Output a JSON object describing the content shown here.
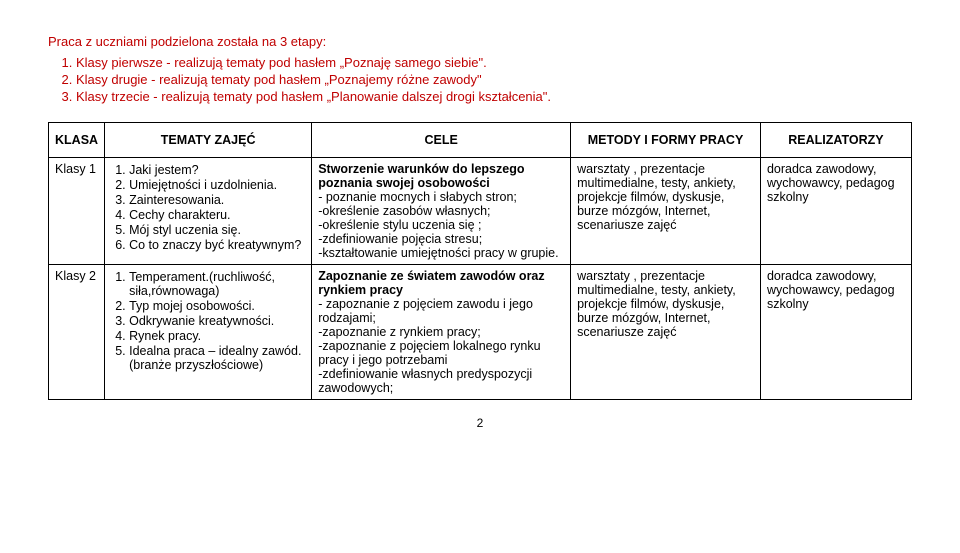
{
  "intro": {
    "lead": "Praca z uczniami podzielona została na 3 etapy:",
    "items": [
      "Klasy pierwsze - realizują tematy pod hasłem „Poznaję samego siebie\".",
      "Klasy drugie  - realizują tematy pod hasłem „Poznajemy różne zawody\"",
      "Klasy trzecie - realizują tematy pod hasłem „Planowanie dalszej drogi kształcenia\"."
    ]
  },
  "table": {
    "headers": {
      "klasa": "KLASA",
      "tematy": "TEMATY ZAJĘĆ",
      "cele": "CELE",
      "metody": "METODY I FORMY PRACY",
      "real": "REALIZATORZY"
    },
    "rows": [
      {
        "klasa": "Klasy 1",
        "tematy": [
          "Jaki jestem?",
          "Umiejętności i uzdolnienia.",
          "Zainteresowania.",
          "Cechy charakteru.",
          "Mój styl uczenia się.",
          "Co to znaczy być kreatywnym?"
        ],
        "cele_title": "Stworzenie warunków do lepszego poznania swojej osobowości",
        "cele_body": "- poznanie mocnych i słabych stron;\n-określenie zasobów własnych;\n-określenie stylu uczenia się ;\n-zdefiniowanie pojęcia stresu;\n-kształtowanie umiejętności pracy w grupie.",
        "metody": "warsztaty , prezentacje multimedialne, testy, ankiety, projekcje filmów, dyskusje, burze mózgów, Internet, scenariusze zajęć",
        "real": "doradca zawodowy, wychowawcy, pedagog szkolny"
      },
      {
        "klasa": "Klasy 2",
        "tematy": [
          "Temperament.(ruchliwość, siła,równowaga)",
          "Typ mojej osobowości.",
          "Odkrywanie kreatywności.",
          "Rynek pracy.",
          "Idealna praca – idealny zawód.(branże przyszłościowe)"
        ],
        "cele_title": "Zapoznanie ze światem zawodów oraz rynkiem pracy",
        "cele_body": "- zapoznanie z pojęciem zawodu i jego rodzajami;\n-zapoznanie z rynkiem pracy;\n -zapoznanie z pojęciem lokalnego rynku pracy i jego potrzebami\n-zdefiniowanie własnych predyspozycji zawodowych;",
        "metody": "warsztaty , prezentacje multimedialne, testy, ankiety, projekcje filmów, dyskusje, burze mózgów, Internet, scenariusze zajęć",
        "real": "doradca zawodowy, wychowawcy, pedagog szkolny"
      }
    ]
  },
  "page_number": "2"
}
